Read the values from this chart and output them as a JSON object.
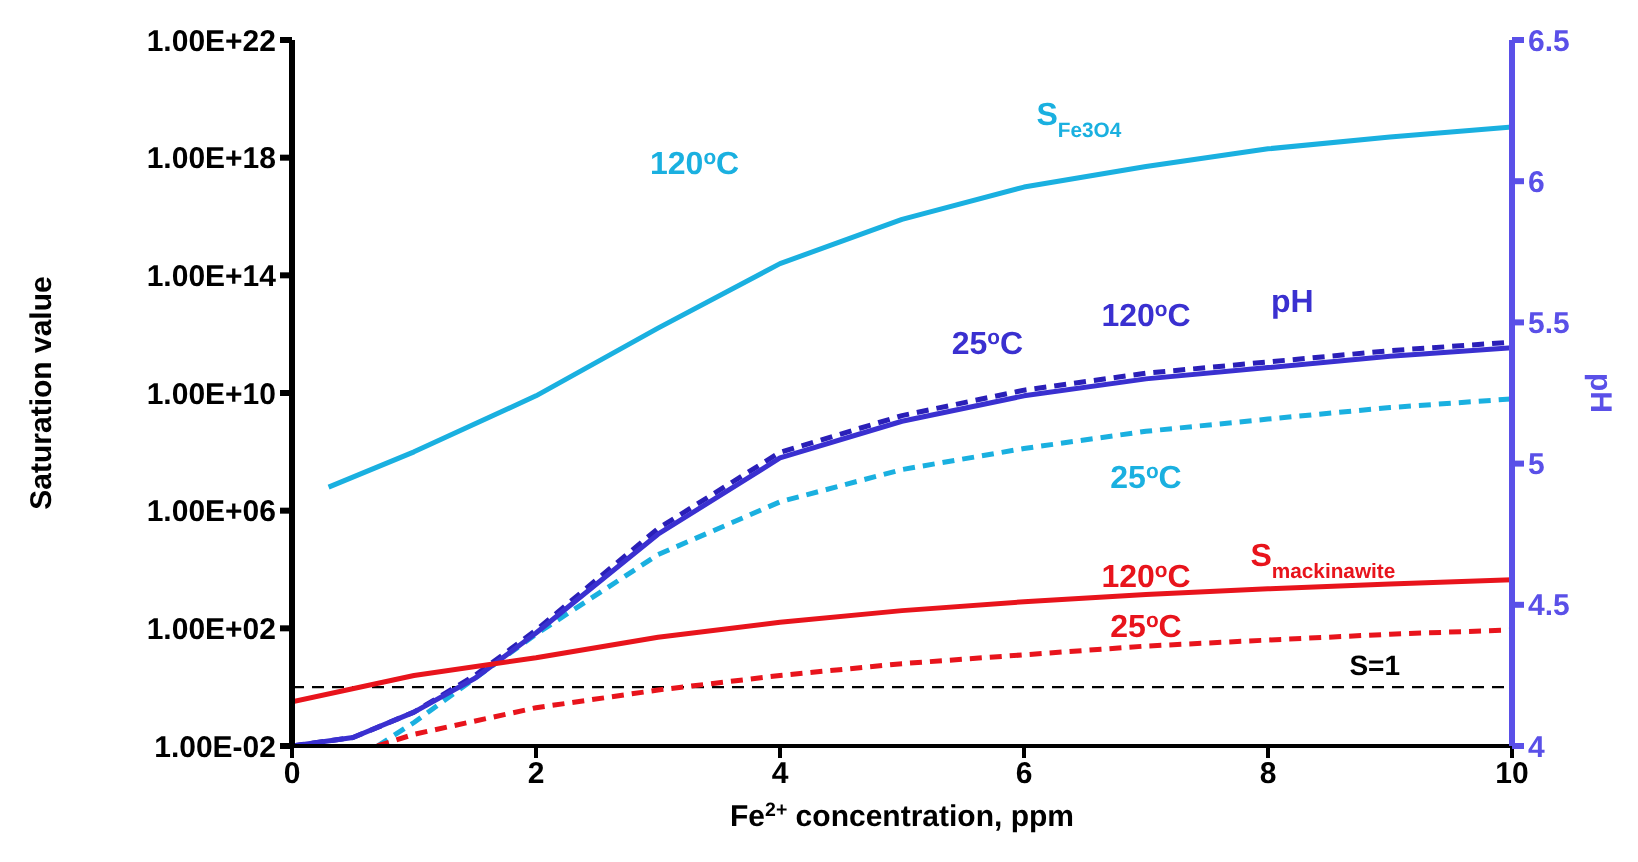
{
  "chart_data": {
    "type": "line",
    "xlabel": "Fe$^{2+}$ concentration, ppm",
    "ylabel": "Saturation value",
    "y2label": "pH",
    "log": "y",
    "grid": false,
    "legend": false,
    "marker": "none",
    "xlim": [
      0,
      10
    ],
    "xticks": [
      0,
      2,
      4,
      6,
      8,
      10
    ],
    "ylim": [
      0.01,
      1e+22
    ],
    "yticks": [
      {
        "value": 0.01,
        "label": "1.00E-02"
      },
      {
        "value": 100,
        "label": "1.00E+02"
      },
      {
        "value": 1000000.0,
        "label": "1.00E+06"
      },
      {
        "value": 10000000000.0,
        "label": "1.00E+10"
      },
      {
        "value": 100000000000000.0,
        "label": "1.00E+14"
      },
      {
        "value": 1e+18,
        "label": "1.00E+18"
      },
      {
        "value": 1e+22,
        "label": "1.00E+22"
      }
    ],
    "y2lim": [
      4,
      6.5
    ],
    "y2ticks": [
      4,
      4.5,
      5,
      5.5,
      6,
      6.5
    ],
    "series": [
      {
        "color": "#1ab0e0",
        "line_style": "solid",
        "x": [
          0.3,
          1,
          2,
          3,
          4,
          5,
          6,
          7,
          8,
          9,
          10
        ],
        "values": [
          6300000.0,
          100000000.0,
          8000000000.0,
          1600000000000.0,
          250000000000000.0,
          8000000000000000.0,
          1e+17,
          5e+17,
          2e+18,
          5e+18,
          1.1e+19
        ]
      },
      {
        "color": "#1ab0e0",
        "line_style": "dashed",
        "x": [
          0.7,
          1,
          1.5,
          2,
          3,
          4,
          5,
          6,
          7,
          8,
          9,
          10
        ],
        "values": [
          0.01,
          0.063,
          2,
          63,
          32000.0,
          2000000.0,
          25000000.0,
          130000000.0,
          500000000.0,
          1300000000.0,
          3200000000.0,
          6300000000.0
        ]
      },
      {
        "color": "#2a1fb8",
        "line_style": "dashed",
        "axis": "y2",
        "x": [
          0,
          0.5,
          1,
          1.5,
          2,
          3,
          4,
          5,
          6,
          7,
          8,
          9,
          10
        ],
        "values": [
          4.0,
          4.03,
          4.12,
          4.25,
          4.41,
          4.77,
          5.04,
          5.17,
          5.26,
          5.32,
          5.36,
          5.4,
          5.43
        ]
      },
      {
        "color": "#3a30d0",
        "line_style": "solid",
        "axis": "y2",
        "x": [
          0,
          0.5,
          1,
          1.5,
          2,
          3,
          4,
          5,
          6,
          7,
          8,
          9,
          10
        ],
        "values": [
          4.0,
          4.03,
          4.12,
          4.24,
          4.4,
          4.75,
          5.02,
          5.15,
          5.24,
          5.3,
          5.34,
          5.38,
          5.41
        ]
      },
      {
        "color": "#e8141c",
        "line_style": "solid",
        "x": [
          0,
          1,
          2,
          3,
          4,
          5,
          6,
          7,
          8,
          9,
          10
        ],
        "values": [
          0.32,
          2.5,
          10,
          50,
          160,
          400,
          800,
          1400,
          2200,
          3200,
          4500
        ]
      },
      {
        "color": "#e8141c",
        "line_style": "dashed",
        "x": [
          0.7,
          1,
          2,
          3,
          4,
          5,
          6,
          7,
          8,
          9,
          10
        ],
        "values": [
          0.01,
          0.025,
          0.2,
          0.8,
          2.5,
          6.3,
          12.6,
          25,
          40,
          63,
          89
        ]
      }
    ],
    "ref_lines": [
      {
        "axis": "y",
        "value": 1,
        "label": "S=1",
        "color": "#000000",
        "line_style": "dashed"
      }
    ],
    "annotations": [
      "120$^{o}$C",
      "S$_{Fe3O4}$",
      "25$^{o}$C",
      "120$^{o}$C",
      "pH",
      "25$^{o}$C",
      "120$^{o}$C",
      "S$_{mackinawite}$",
      "25$^{o}$C"
    ]
  }
}
